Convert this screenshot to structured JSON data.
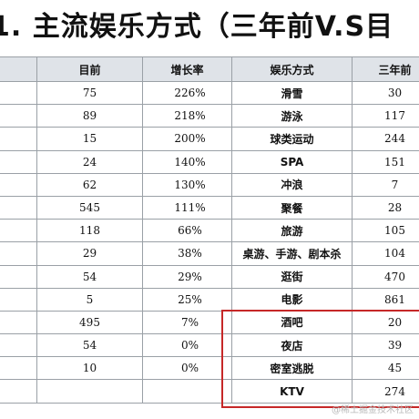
{
  "title": "1. 主流娱乐方式（三年前V.S目",
  "columns": [
    "",
    "目前",
    "增长率",
    "娱乐方式",
    "三年前"
  ],
  "rows": [
    {
      "current": "75",
      "growth": "226%",
      "activity": "滑雪",
      "before": "30"
    },
    {
      "current": "89",
      "growth": "218%",
      "activity": "游泳",
      "before": "117"
    },
    {
      "current": "15",
      "growth": "200%",
      "activity": "球类运动",
      "before": "244"
    },
    {
      "current": "24",
      "growth": "140%",
      "activity": "SPA",
      "before": "151"
    },
    {
      "current": "62",
      "growth": "130%",
      "activity": "冲浪",
      "before": "7"
    },
    {
      "current": "545",
      "growth": "111%",
      "activity": "聚餐",
      "before": "28"
    },
    {
      "current": "118",
      "growth": "66%",
      "activity": "旅游",
      "before": "105"
    },
    {
      "current": "29",
      "growth": "38%",
      "activity": "桌游、手游、剧本杀",
      "before": "104"
    },
    {
      "current": "54",
      "growth": "29%",
      "activity": "逛街",
      "before": "470"
    },
    {
      "current": "5",
      "growth": "25%",
      "activity": "电影",
      "before": "861"
    },
    {
      "current": "495",
      "growth": "7%",
      "activity": "酒吧",
      "before": "20"
    },
    {
      "current": "54",
      "growth": "0%",
      "activity": "夜店",
      "before": "39"
    },
    {
      "current": "10",
      "growth": "0%",
      "activity": "密室逃脱",
      "before": "45"
    },
    {
      "current": "",
      "growth": "",
      "activity": "KTV",
      "before": "274"
    }
  ],
  "highlight_color": "#c62828",
  "watermark": "@稀土掘金技术社区"
}
